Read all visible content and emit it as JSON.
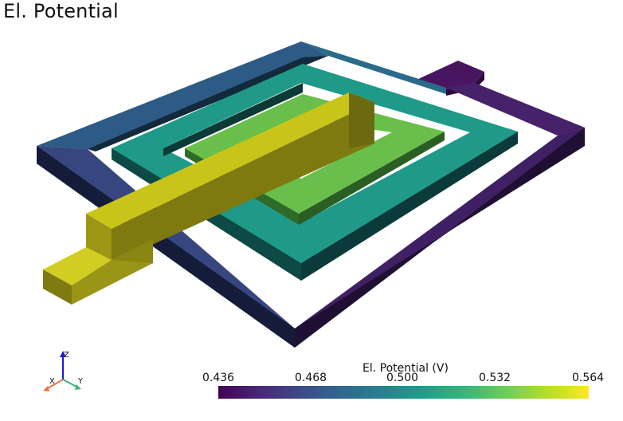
{
  "title": "El. Potential",
  "axes": {
    "x": "X",
    "y": "Y",
    "z": "Z"
  },
  "colorbar": {
    "title": "El. Potential (V)",
    "ticks": [
      "0.436",
      "0.468",
      "0.500",
      "0.532",
      "0.564"
    ],
    "colormap": "viridis"
  },
  "colors": {
    "outer_coil": "#2f5b88",
    "outer_coil_dark": "#431c63",
    "middle_coil": "#1f9a89",
    "inner_coil": "#6abf4c",
    "bridge": "#c8c41a",
    "terminal_right": "#4a1a63"
  }
}
